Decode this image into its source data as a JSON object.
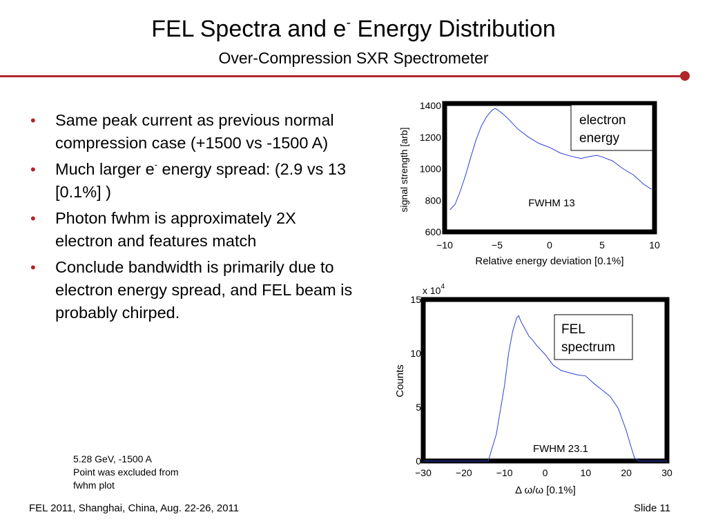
{
  "slide": {
    "title_a": "FEL Spectra and e",
    "title_sup": "-",
    "title_b": " Energy Distribution",
    "subtitle": "Over-Compression SXR Spectrometer",
    "bullets": {
      "b1": "Same peak current as previous normal compression case (+1500 vs -1500 A)",
      "b2_a": "Much larger e",
      "b2_sup": "-",
      "b2_b": " energy spread: (2.9 vs 13 [0.1%] )",
      "b3": "Photon fwhm is approximately 2X electron and features match",
      "b4": "Conclude bandwidth is primarily due to electron energy spread, and FEL beam is probably chirped."
    },
    "note": [
      "5.28 GeV, -1500 A",
      "Point was excluded from",
      "fwhm plot"
    ],
    "footer_left": "FEL 2011, Shanghai, China, Aug. 22-26, 2011",
    "footer_right": "Slide 11",
    "accent_color": "#b0262b",
    "line_color": "#2b3fd6"
  },
  "chart_data": [
    {
      "type": "line",
      "xlabel": "Relative energy deviation [0.1%]",
      "ylabel": "signal strength [arb]",
      "xlim": [
        -10,
        10
      ],
      "ylim": [
        600,
        1400
      ],
      "xticks": [
        "−10",
        "−5",
        "0",
        "5",
        "10"
      ],
      "yticks": [
        "600",
        "800",
        "1000",
        "1200",
        "1400"
      ],
      "legend": [
        "electron",
        "energy"
      ],
      "annotation": "FWHM 13",
      "series": [
        {
          "x": [
            -9.5,
            -9,
            -8.5,
            -8,
            -7.5,
            -7,
            -6.5,
            -6,
            -5.5,
            -5.2,
            -5,
            -4.5,
            -4,
            -3,
            -2,
            -1,
            0,
            1,
            2,
            3,
            4,
            4.5,
            5,
            6,
            7,
            8,
            9,
            9.7
          ],
          "y": [
            740,
            775,
            860,
            960,
            1075,
            1185,
            1270,
            1330,
            1370,
            1382,
            1375,
            1350,
            1320,
            1250,
            1200,
            1160,
            1135,
            1100,
            1080,
            1065,
            1080,
            1085,
            1075,
            1050,
            1000,
            960,
            900,
            870
          ]
        }
      ]
    },
    {
      "type": "line",
      "xlabel": "Δ ω/ω [0.1%]",
      "ylabel": "Counts",
      "y_multiplier": "x 10",
      "y_multiplier_exp": "4",
      "xlim": [
        -30,
        30
      ],
      "ylim": [
        0,
        15
      ],
      "xticks": [
        "−30",
        "−20",
        "−10",
        "0",
        "10",
        "20",
        "30"
      ],
      "yticks": [
        "0",
        "5",
        "10",
        "15"
      ],
      "legend": [
        "FEL",
        "spectrum"
      ],
      "annotation": "FWHM 23.1",
      "series": [
        {
          "x": [
            -30,
            -20,
            -14,
            -12,
            -10,
            -9,
            -8,
            -7,
            -6.5,
            -6,
            -5,
            -4,
            -3,
            -2,
            -1,
            0,
            2,
            4,
            6,
            8,
            10,
            12,
            14,
            16,
            18,
            20,
            21,
            22,
            23,
            24,
            30
          ],
          "y": [
            0,
            0,
            0,
            2.5,
            7,
            10,
            12,
            13.3,
            13.5,
            13,
            12.3,
            11.6,
            11.2,
            10.7,
            10.3,
            9.9,
            8.9,
            8.4,
            8.2,
            8.0,
            7.9,
            7.2,
            6.6,
            6.0,
            4.9,
            2.8,
            1.5,
            0.3,
            0,
            0,
            0
          ]
        }
      ]
    }
  ]
}
